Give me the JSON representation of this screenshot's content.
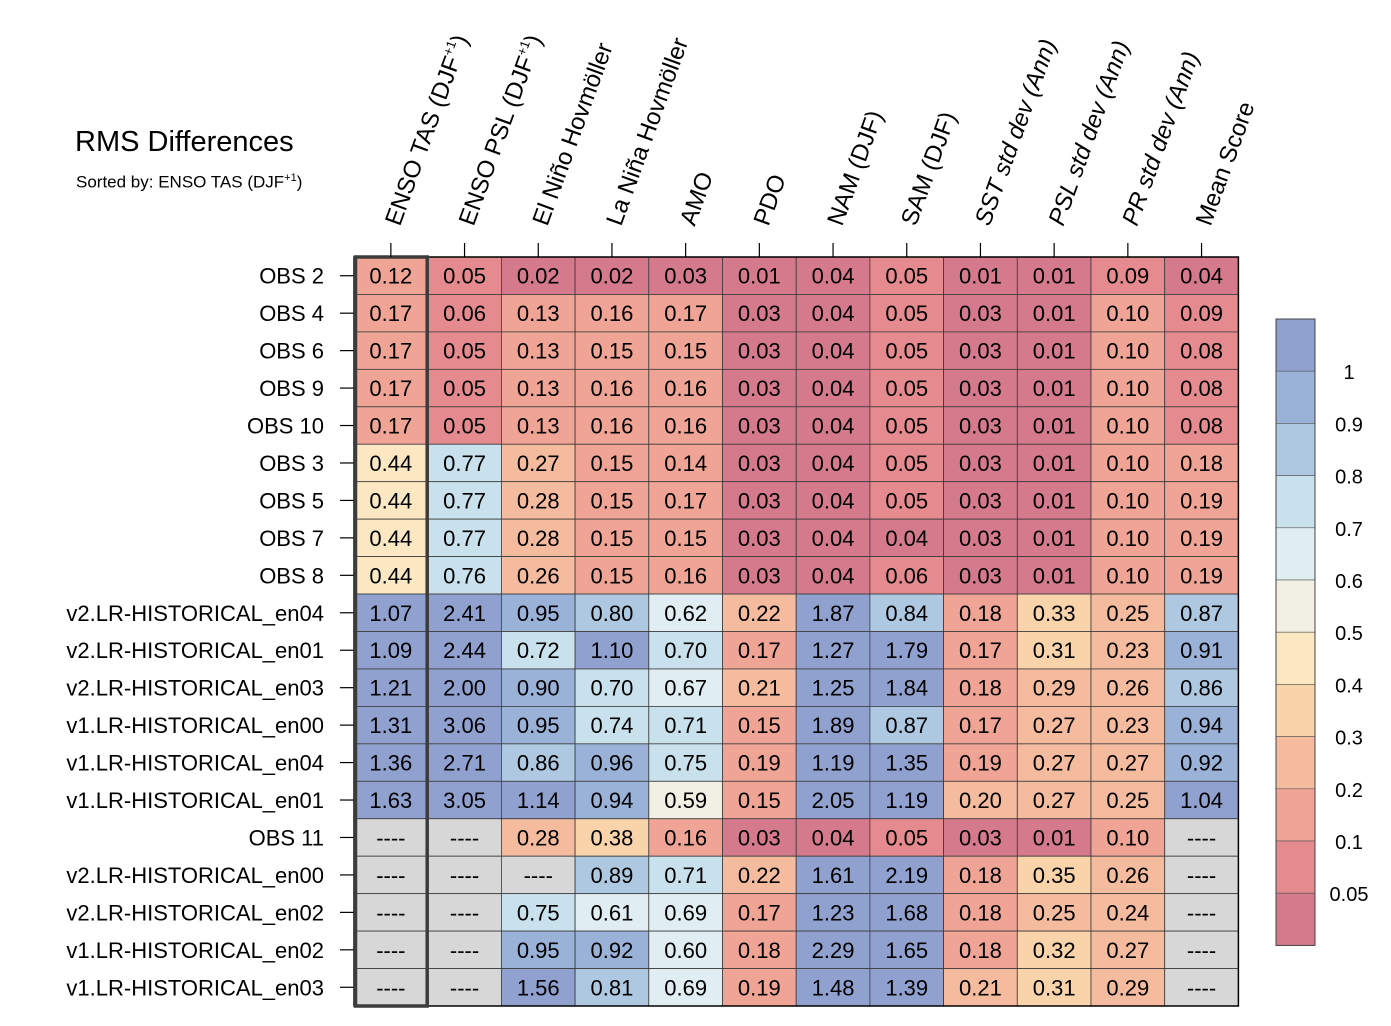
{
  "chart_data": {
    "type": "heatmap",
    "title": "RMS Differences",
    "subtitle": "Sorted by: ENSO TAS (DJF",
    "subtitle_sup": "+1",
    "subtitle_end": ")",
    "columns": [
      {
        "label": "ENSO TAS (DJF",
        "sup": "+1",
        "end": ")",
        "italic": false
      },
      {
        "label": "ENSO PSL (DJF",
        "sup": "+1",
        "end": ")",
        "italic": false
      },
      {
        "label": "El Niño Hovmöller",
        "italic": false
      },
      {
        "label": "La Niña Hovmöller",
        "italic": false
      },
      {
        "label": "AMO",
        "italic": false
      },
      {
        "label": "PDO",
        "italic": false
      },
      {
        "label": "NAM (DJF)",
        "italic": false
      },
      {
        "label": "SAM (DJF)",
        "italic": false
      },
      {
        "label": "SST std dev (Ann)",
        "italic": true
      },
      {
        "label": "PSL std dev (Ann)",
        "italic": true
      },
      {
        "label": "PR std dev (Ann)",
        "italic": true
      },
      {
        "label": "Mean Score",
        "italic": false
      }
    ],
    "rows": [
      "OBS 2",
      "OBS 4",
      "OBS 6",
      "OBS 9",
      "OBS 10",
      "OBS 3",
      "OBS 5",
      "OBS 7",
      "OBS 8",
      "v2.LR-HISTORICAL_en04",
      "v2.LR-HISTORICAL_en01",
      "v2.LR-HISTORICAL_en03",
      "v1.LR-HISTORICAL_en00",
      "v1.LR-HISTORICAL_en04",
      "v1.LR-HISTORICAL_en01",
      "OBS 11",
      "v2.LR-HISTORICAL_en00",
      "v2.LR-HISTORICAL_en02",
      "v1.LR-HISTORICAL_en02",
      "v1.LR-HISTORICAL_en03"
    ],
    "values": [
      [
        "0.12",
        "0.05",
        "0.02",
        "0.02",
        "0.03",
        "0.01",
        "0.04",
        "0.05",
        "0.01",
        "0.01",
        "0.09",
        "0.04"
      ],
      [
        "0.17",
        "0.06",
        "0.13",
        "0.16",
        "0.17",
        "0.03",
        "0.04",
        "0.05",
        "0.03",
        "0.01",
        "0.10",
        "0.09"
      ],
      [
        "0.17",
        "0.05",
        "0.13",
        "0.15",
        "0.15",
        "0.03",
        "0.04",
        "0.05",
        "0.03",
        "0.01",
        "0.10",
        "0.08"
      ],
      [
        "0.17",
        "0.05",
        "0.13",
        "0.16",
        "0.16",
        "0.03",
        "0.04",
        "0.05",
        "0.03",
        "0.01",
        "0.10",
        "0.08"
      ],
      [
        "0.17",
        "0.05",
        "0.13",
        "0.16",
        "0.16",
        "0.03",
        "0.04",
        "0.05",
        "0.03",
        "0.01",
        "0.10",
        "0.08"
      ],
      [
        "0.44",
        "0.77",
        "0.27",
        "0.15",
        "0.14",
        "0.03",
        "0.04",
        "0.05",
        "0.03",
        "0.01",
        "0.10",
        "0.18"
      ],
      [
        "0.44",
        "0.77",
        "0.28",
        "0.15",
        "0.17",
        "0.03",
        "0.04",
        "0.05",
        "0.03",
        "0.01",
        "0.10",
        "0.19"
      ],
      [
        "0.44",
        "0.77",
        "0.28",
        "0.15",
        "0.15",
        "0.03",
        "0.04",
        "0.04",
        "0.03",
        "0.01",
        "0.10",
        "0.19"
      ],
      [
        "0.44",
        "0.76",
        "0.26",
        "0.15",
        "0.16",
        "0.03",
        "0.04",
        "0.06",
        "0.03",
        "0.01",
        "0.10",
        "0.19"
      ],
      [
        "1.07",
        "2.41",
        "0.95",
        "0.80",
        "0.62",
        "0.22",
        "1.87",
        "0.84",
        "0.18",
        "0.33",
        "0.25",
        "0.87"
      ],
      [
        "1.09",
        "2.44",
        "0.72",
        "1.10",
        "0.70",
        "0.17",
        "1.27",
        "1.79",
        "0.17",
        "0.31",
        "0.23",
        "0.91"
      ],
      [
        "1.21",
        "2.00",
        "0.90",
        "0.70",
        "0.67",
        "0.21",
        "1.25",
        "1.84",
        "0.18",
        "0.29",
        "0.26",
        "0.86"
      ],
      [
        "1.31",
        "3.06",
        "0.95",
        "0.74",
        "0.71",
        "0.15",
        "1.89",
        "0.87",
        "0.17",
        "0.27",
        "0.23",
        "0.94"
      ],
      [
        "1.36",
        "2.71",
        "0.86",
        "0.96",
        "0.75",
        "0.19",
        "1.19",
        "1.35",
        "0.19",
        "0.27",
        "0.27",
        "0.92"
      ],
      [
        "1.63",
        "3.05",
        "1.14",
        "0.94",
        "0.59",
        "0.15",
        "2.05",
        "1.19",
        "0.20",
        "0.27",
        "0.25",
        "1.04"
      ],
      [
        "----",
        "----",
        "0.28",
        "0.38",
        "0.16",
        "0.03",
        "0.04",
        "0.05",
        "0.03",
        "0.01",
        "0.10",
        "----"
      ],
      [
        "----",
        "----",
        "----",
        "0.89",
        "0.71",
        "0.22",
        "1.61",
        "2.19",
        "0.18",
        "0.35",
        "0.26",
        "----"
      ],
      [
        "----",
        "----",
        "0.75",
        "0.61",
        "0.69",
        "0.17",
        "1.23",
        "1.68",
        "0.18",
        "0.25",
        "0.24",
        "----"
      ],
      [
        "----",
        "----",
        "0.95",
        "0.92",
        "0.60",
        "0.18",
        "2.29",
        "1.65",
        "0.18",
        "0.32",
        "0.27",
        "----"
      ],
      [
        "----",
        "----",
        "1.56",
        "0.81",
        "0.69",
        "0.19",
        "1.48",
        "1.39",
        "0.21",
        "0.31",
        "0.29",
        "----"
      ]
    ],
    "missing_value": "----",
    "highlighted_column": "ENSO TAS (DJF+1)",
    "colorbar": {
      "boundaries": [
        0.05,
        0.1,
        0.2,
        0.3,
        0.4,
        0.5,
        0.6,
        0.7,
        0.8,
        0.9,
        1
      ],
      "tick_labels": [
        "0.05",
        "0.1",
        "0.2",
        "0.3",
        "0.4",
        "0.5",
        "0.6",
        "0.7",
        "0.8",
        "0.9",
        "1"
      ],
      "colors": [
        "#d57a8c",
        "#e58a8e",
        "#efa496",
        "#f5bb9e",
        "#f9d3aa",
        "#fbe8c2",
        "#f2f0e4",
        "#e0eef3",
        "#c9e1ec",
        "#adc8e0",
        "#9ab1d8",
        "#90a1d0"
      ]
    },
    "missing_color": "#d7d7d7"
  }
}
